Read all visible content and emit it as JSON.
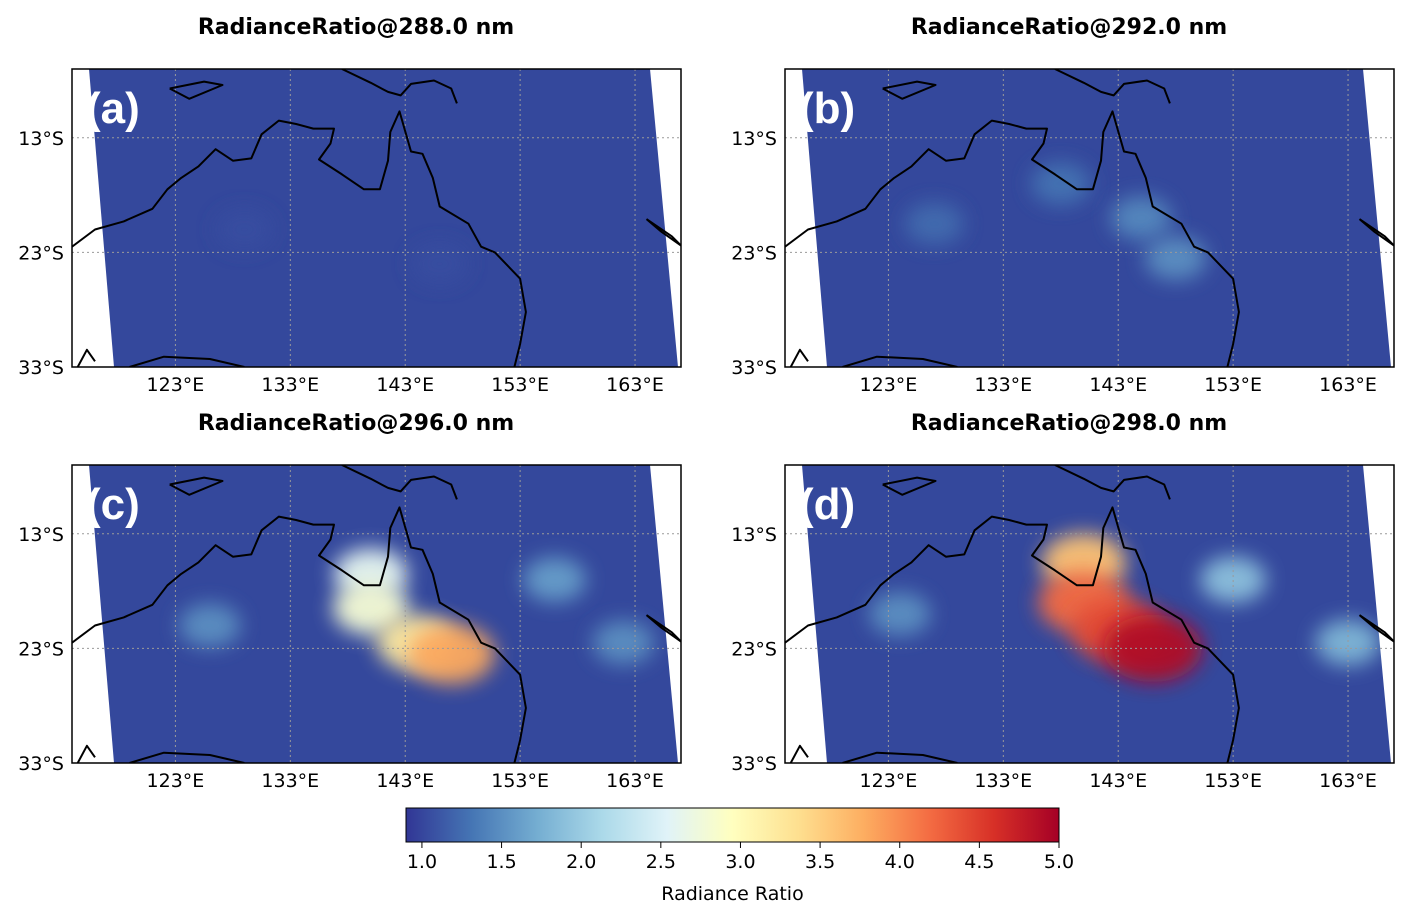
{
  "colorbar": {
    "label": "Radiance Ratio",
    "min": 0.9,
    "max": 5.0,
    "tick_values": [
      1.0,
      1.5,
      2.0,
      2.5,
      3.0,
      3.5,
      4.0,
      4.5,
      5.0
    ],
    "tick_labels": [
      "1.0",
      "1.5",
      "2.0",
      "2.5",
      "3.0",
      "3.5",
      "4.0",
      "4.5",
      "5.0"
    ],
    "colormap": "RdYlBu_r",
    "colors": [
      "#313695",
      "#4575b4",
      "#74add1",
      "#abd9e9",
      "#e0f3f8",
      "#ffffbf",
      "#fee090",
      "#fdae61",
      "#f46d43",
      "#d73027",
      "#a50026"
    ]
  },
  "map_axes": {
    "lon_range": [
      114,
      167
    ],
    "lat_range": [
      -33,
      -7
    ],
    "lon_ticks": [
      123,
      133,
      143,
      153,
      163
    ],
    "lon_tick_labels": [
      "123°E",
      "133°E",
      "143°E",
      "153°E",
      "163°E"
    ],
    "lat_ticks": [
      -13,
      -23,
      -33
    ],
    "lat_tick_labels": [
      "13°S",
      "23°S",
      "33°S"
    ],
    "gridlines": true,
    "background_color": "#34489c",
    "coastline_color": "#000000"
  },
  "panels": [
    {
      "letter": "(a)",
      "title": "RadianceRatio@288.0 nm",
      "plumes": [
        {
          "lon": 129,
          "lat": -21,
          "value": 1.05
        },
        {
          "lon": 146,
          "lat": -24,
          "value": 1.05
        }
      ]
    },
    {
      "letter": "(b)",
      "title": "RadianceRatio@292.0 nm",
      "plumes": [
        {
          "lon": 127,
          "lat": -20.5,
          "value": 1.25
        },
        {
          "lon": 138,
          "lat": -17,
          "value": 1.3
        },
        {
          "lon": 145,
          "lat": -20,
          "value": 1.45
        },
        {
          "lon": 148,
          "lat": -23.5,
          "value": 1.5
        }
      ]
    },
    {
      "letter": "(c)",
      "title": "RadianceRatio@296.0 nm",
      "plumes": [
        {
          "lon": 126,
          "lat": -21,
          "value": 1.5
        },
        {
          "lon": 156,
          "lat": -17,
          "value": 1.6
        },
        {
          "lon": 162,
          "lat": -22.5,
          "value": 1.5
        },
        {
          "lon": 140,
          "lat": -16.5,
          "value": 2.6
        },
        {
          "lon": 140,
          "lat": -19.5,
          "value": 2.8
        },
        {
          "lon": 144,
          "lat": -22.5,
          "value": 3.2
        },
        {
          "lon": 147,
          "lat": -23.5,
          "value": 3.8
        }
      ]
    },
    {
      "letter": "(d)",
      "title": "RadianceRatio@298.0 nm",
      "plumes": [
        {
          "lon": 124,
          "lat": -20,
          "value": 1.5
        },
        {
          "lon": 153,
          "lat": -17,
          "value": 1.9
        },
        {
          "lon": 163,
          "lat": -22.5,
          "value": 1.8
        },
        {
          "lon": 140,
          "lat": -15.5,
          "value": 3.6
        },
        {
          "lon": 140,
          "lat": -19,
          "value": 4.2
        },
        {
          "lon": 143,
          "lat": -21.5,
          "value": 4.4
        },
        {
          "lon": 146,
          "lat": -23,
          "value": 4.9
        }
      ]
    }
  ]
}
